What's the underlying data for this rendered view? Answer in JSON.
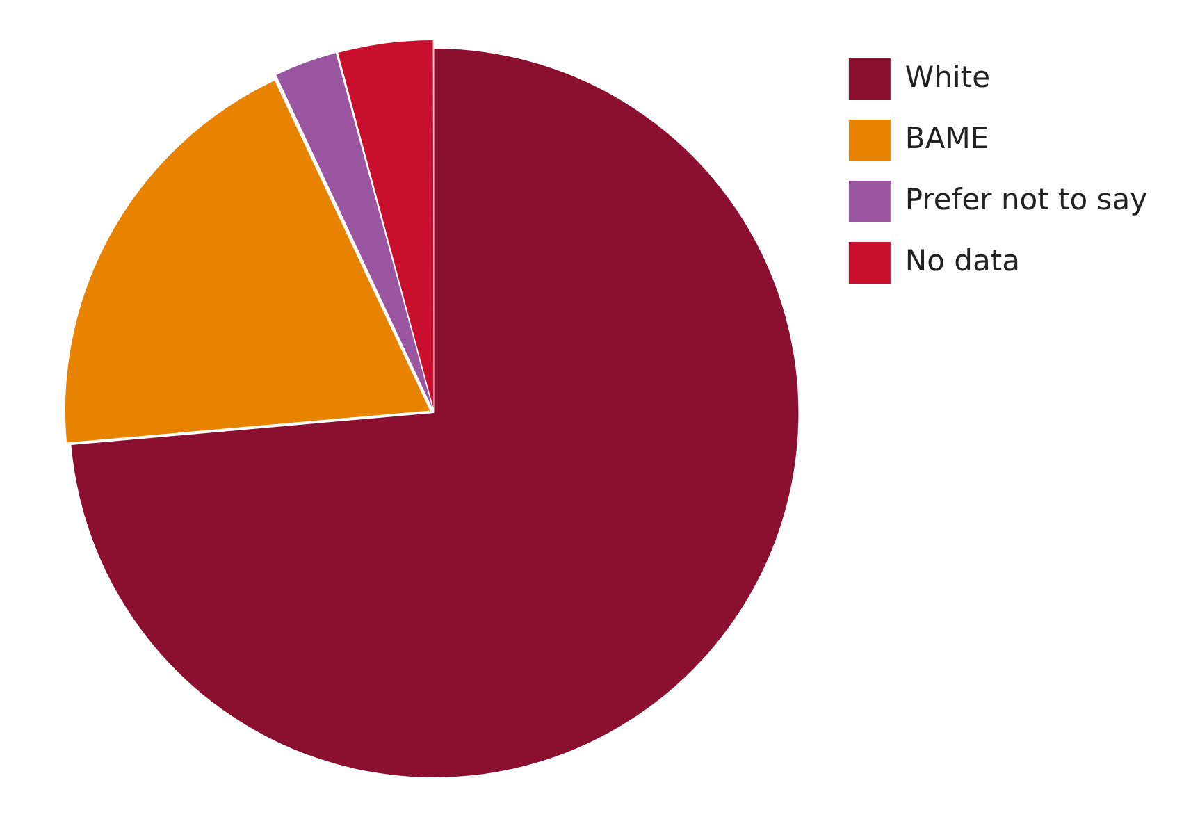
{
  "chart_data": {
    "type": "pie",
    "categories": [
      "White",
      "BAME",
      "Prefer not to say",
      "No data"
    ],
    "values": [
      73.6,
      19.4,
      2.8,
      4.2
    ],
    "colors": [
      "#8b0f2e",
      "#e88300",
      "#9a56a0",
      "#c8102e"
    ],
    "legend": "top right"
  }
}
